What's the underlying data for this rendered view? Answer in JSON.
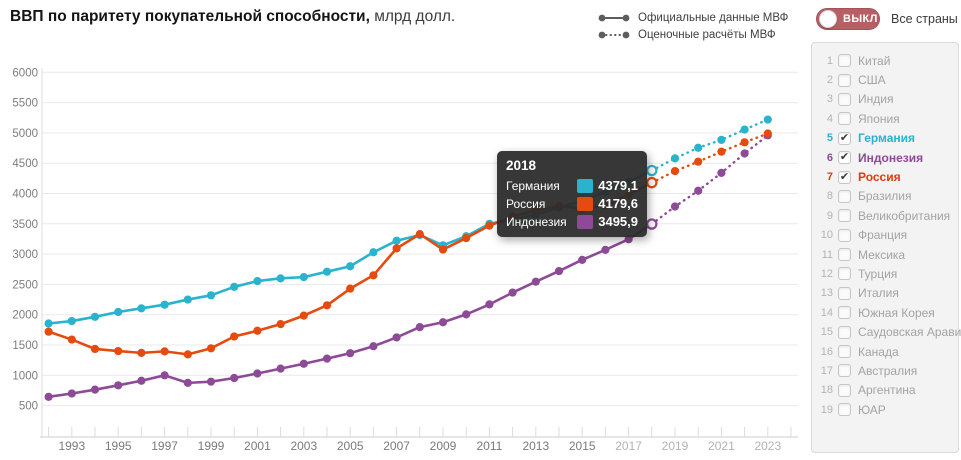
{
  "title": {
    "main": "ВВП по паритету покупательной способности,",
    "unit": "млрд долл."
  },
  "legend": [
    {
      "label": "Официальные данные МВФ",
      "style": "solid"
    },
    {
      "label": "Оценочные расчёты МВФ",
      "style": "dotted"
    }
  ],
  "toggle": {
    "label": "ВЫКЛ",
    "side_label": "Все страны"
  },
  "sidebar": {
    "countries": [
      {
        "num": "1",
        "label": "Китай",
        "checked": false,
        "color": null
      },
      {
        "num": "2",
        "label": "США",
        "checked": false,
        "color": null
      },
      {
        "num": "3",
        "label": "Индия",
        "checked": false,
        "color": null
      },
      {
        "num": "4",
        "label": "Япония",
        "checked": false,
        "color": null
      },
      {
        "num": "5",
        "label": "Германия",
        "checked": true,
        "color": "#29b3cd"
      },
      {
        "num": "6",
        "label": "Индонезия",
        "checked": true,
        "color": "#8d4a96"
      },
      {
        "num": "7",
        "label": "Россия",
        "checked": true,
        "color": "#e0390e"
      },
      {
        "num": "8",
        "label": "Бразилия",
        "checked": false,
        "color": null
      },
      {
        "num": "9",
        "label": "Великобритания",
        "checked": false,
        "color": null
      },
      {
        "num": "10",
        "label": "Франция",
        "checked": false,
        "color": null
      },
      {
        "num": "11",
        "label": "Мексика",
        "checked": false,
        "color": null
      },
      {
        "num": "12",
        "label": "Турция",
        "checked": false,
        "color": null
      },
      {
        "num": "13",
        "label": "Италия",
        "checked": false,
        "color": null
      },
      {
        "num": "14",
        "label": "Южная Корея",
        "checked": false,
        "color": null
      },
      {
        "num": "15",
        "label": "Саудовская Аравия",
        "checked": false,
        "color": null
      },
      {
        "num": "16",
        "label": "Канада",
        "checked": false,
        "color": null
      },
      {
        "num": "17",
        "label": "Австралия",
        "checked": false,
        "color": null
      },
      {
        "num": "18",
        "label": "Аргентина",
        "checked": false,
        "color": null
      },
      {
        "num": "19",
        "label": "ЮАР",
        "checked": false,
        "color": null
      }
    ]
  },
  "tooltip": {
    "year": "2018",
    "rows": [
      {
        "label": "Германия",
        "value": "4379,1",
        "color": "#29b3cd"
      },
      {
        "label": "Россия",
        "value": "4179,6",
        "color": "#e54a0e"
      },
      {
        "label": "Индонезия",
        "value": "3495,9",
        "color": "#8d4a96"
      }
    ]
  },
  "chart_data": {
    "type": "line",
    "title": "ВВП по паритету покупательной способности, млрд долл.",
    "x_start": 1992,
    "x_end": 2023,
    "series": [
      {
        "name": "Германия",
        "color": "#29b3cd",
        "values": [
          1855,
          1895,
          1965,
          2045,
          2105,
          2165,
          2250,
          2320,
          2460,
          2555,
          2600,
          2620,
          2710,
          2800,
          3030,
          3220,
          3315,
          3145,
          3295,
          3500,
          3570,
          3650,
          3770,
          3880,
          4025,
          4190,
          4379.1,
          4580,
          4755,
          4885,
          5055,
          5220
        ]
      },
      {
        "name": "Россия",
        "color": "#e54a0e",
        "values": [
          1720,
          1590,
          1435,
          1400,
          1370,
          1395,
          1345,
          1445,
          1640,
          1735,
          1845,
          1985,
          2155,
          2430,
          2650,
          3095,
          3330,
          3075,
          3265,
          3470,
          3620,
          3720,
          3790,
          3755,
          3800,
          3980,
          4179.6,
          4370,
          4525,
          4690,
          4845,
          4990
        ]
      },
      {
        "name": "Индонезия",
        "color": "#8d4a96",
        "values": [
          645,
          700,
          763,
          835,
          910,
          1000,
          875,
          895,
          955,
          1030,
          1110,
          1190,
          1275,
          1365,
          1480,
          1625,
          1795,
          1875,
          2005,
          2170,
          2365,
          2545,
          2720,
          2905,
          3070,
          3245,
          3495.9,
          3785,
          4045,
          4340,
          4660,
          4960
        ]
      }
    ],
    "draw_order": [
      0,
      2,
      1
    ],
    "solid_until_year": 2018,
    "hover_year": 2018,
    "yticks": [
      500,
      1000,
      1500,
      2000,
      2500,
      3000,
      3500,
      4000,
      4500,
      5000,
      5500,
      6000
    ],
    "xticks": [
      1993,
      1995,
      1997,
      1999,
      2001,
      2003,
      2005,
      2007,
      2009,
      2011,
      2013,
      2015,
      2017,
      2019,
      2021,
      2023
    ],
    "xticks_estimate_from": 2017,
    "ylim": [
      500,
      6000
    ],
    "grid": true,
    "legend_position": "top-right",
    "legend_entries": [
      "Официальные данные МВФ",
      "Оценочные расчёты МВФ"
    ]
  }
}
